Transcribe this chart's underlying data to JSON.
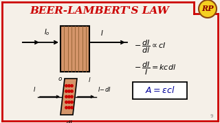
{
  "title": "BEER-LAMBERT'S LAW",
  "title_color": "#CC0000",
  "title_fontsize": 11,
  "bg_color": "#F5F0E8",
  "border_color": "#CC0000",
  "box_fill": "#D4956A",
  "box_stroke": "#8B4513",
  "rp_bg": "#F5D020",
  "rp_text": "RP",
  "rp_text_color": "#8B0000"
}
